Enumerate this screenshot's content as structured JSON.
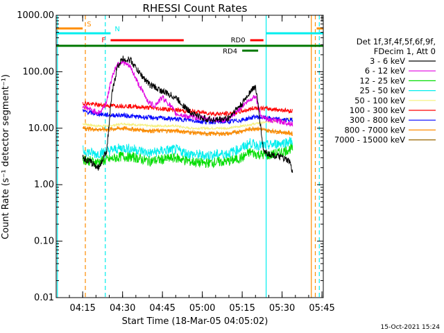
{
  "chart_data": {
    "type": "line",
    "title": "RHESSI Count Rates",
    "xlabel": "Start Time (18-Mar-05 04:05:02)",
    "ylabel": "Count Rate (s⁻¹ detector segment⁻¹)",
    "y_scale": "log",
    "ylim": [
      0.01,
      1000
    ],
    "xlim": [
      "04:05:02",
      "05:45:30"
    ],
    "x_ticks": [
      "04:15",
      "04:30",
      "04:45",
      "05:00",
      "05:15",
      "05:30",
      "05:45"
    ],
    "y_ticks": [
      "0.01",
      "0.10",
      "1.00",
      "10.00",
      "100.00",
      "1000.00"
    ],
    "timestamp": "15-Oct-2021 15:24",
    "legend": {
      "header": [
        "Det 1f,3f,4f,5f,6f,9f,",
        "FDecim 1, Att 0"
      ],
      "placement": "right"
    },
    "series": [
      {
        "name": "3 - 6 keV",
        "color": "#000000",
        "x": [
          "04:15",
          "04:18",
          "04:21",
          "04:22",
          "04:24",
          "04:26",
          "04:28",
          "04:30",
          "04:33",
          "04:36",
          "04:40",
          "04:45",
          "04:50",
          "04:55",
          "05:00",
          "05:05",
          "05:10",
          "05:12",
          "05:15",
          "05:18",
          "05:20",
          "05:21",
          "05:23",
          "05:25",
          "05:30",
          "05:33",
          "05:34"
        ],
        "values": [
          3,
          2.5,
          2,
          2.5,
          4,
          40,
          120,
          170,
          160,
          100,
          60,
          45,
          35,
          20,
          15,
          14,
          15,
          20,
          27,
          45,
          55,
          25,
          4,
          3.5,
          3,
          2.5,
          1.5
        ]
      },
      {
        "name": "6 - 12 keV",
        "color": "#e000e0",
        "x": [
          "04:15",
          "04:18",
          "04:21",
          "04:22",
          "04:24",
          "04:26",
          "04:28",
          "04:30",
          "04:33",
          "04:36",
          "04:40",
          "04:42",
          "04:45",
          "04:48",
          "04:50",
          "04:55",
          "05:00",
          "05:05",
          "05:10",
          "05:15",
          "05:18",
          "05:20",
          "05:22",
          "05:25",
          "05:30",
          "05:34"
        ],
        "values": [
          25,
          21,
          19,
          20,
          30,
          80,
          140,
          150,
          120,
          60,
          28,
          25,
          35,
          25,
          18,
          16,
          15,
          14,
          14,
          25,
          32,
          38,
          17,
          14,
          13,
          12
        ]
      },
      {
        "name": "12 - 25 keV",
        "color": "#00dd00",
        "x": [
          "04:15",
          "04:20",
          "04:25",
          "04:30",
          "04:35",
          "04:40",
          "04:45",
          "04:50",
          "04:55",
          "05:00",
          "05:05",
          "05:10",
          "05:15",
          "05:18",
          "05:20",
          "05:25",
          "05:30",
          "05:34"
        ],
        "values": [
          2.8,
          2.5,
          2.8,
          3.2,
          3.0,
          2.6,
          2.8,
          3.0,
          2.6,
          2.4,
          2.5,
          2.6,
          3.0,
          3.8,
          3.5,
          3.3,
          3.8,
          4.5
        ]
      },
      {
        "name": "25 - 50 keV",
        "color": "#00eeee",
        "x": [
          "04:15",
          "04:20",
          "04:25",
          "04:30",
          "04:35",
          "04:40",
          "04:45",
          "04:50",
          "04:55",
          "05:00",
          "05:05",
          "05:10",
          "05:15",
          "05:18",
          "05:20",
          "05:25",
          "05:30",
          "05:34"
        ],
        "values": [
          4,
          3.5,
          4,
          4.5,
          4.2,
          3.6,
          4,
          4.2,
          3.5,
          3.3,
          3.4,
          3.6,
          4.5,
          5.5,
          5,
          5,
          5.5,
          6
        ]
      },
      {
        "name": "50 - 100 keV",
        "color": "#f5f07a",
        "x": [
          "04:15",
          "04:20",
          "04:25",
          "04:30",
          "04:35",
          "04:40",
          "04:45",
          "04:50",
          "04:55",
          "05:00",
          "05:05",
          "05:10",
          "05:15",
          "05:20",
          "05:25",
          "05:30",
          "05:34"
        ],
        "values": [
          12,
          11,
          11,
          12,
          11.5,
          11,
          11,
          11,
          10,
          10,
          10,
          10,
          11,
          12,
          13,
          14,
          15
        ]
      },
      {
        "name": "100 - 300 keV",
        "color": "#ff0000",
        "x": [
          "04:15",
          "04:20",
          "04:25",
          "04:30",
          "04:35",
          "04:40",
          "04:45",
          "04:50",
          "04:55",
          "05:00",
          "05:05",
          "05:10",
          "05:15",
          "05:20",
          "05:25",
          "05:30",
          "05:34"
        ],
        "values": [
          28,
          26,
          25,
          25,
          24,
          23,
          22,
          21,
          20,
          19,
          18,
          18,
          20,
          23,
          22,
          21,
          20
        ]
      },
      {
        "name": "300 - 800 keV",
        "color": "#0000ff",
        "x": [
          "04:15",
          "04:20",
          "04:25",
          "04:30",
          "04:35",
          "04:40",
          "04:45",
          "04:50",
          "04:55",
          "05:00",
          "05:05",
          "05:10",
          "05:15",
          "05:20",
          "05:25",
          "05:30",
          "05:34"
        ],
        "values": [
          20,
          18,
          17,
          17,
          16,
          15.5,
          15,
          14.5,
          14,
          13,
          13,
          13,
          14,
          16,
          15,
          14,
          14
        ]
      },
      {
        "name": "800 - 7000 keV",
        "color": "#ff8c00",
        "x": [
          "04:15",
          "04:20",
          "04:25",
          "04:30",
          "04:35",
          "04:40",
          "04:45",
          "04:50",
          "04:55",
          "05:00",
          "05:05",
          "05:10",
          "05:15",
          "05:20",
          "05:25",
          "05:30",
          "05:34"
        ],
        "values": [
          10,
          9.5,
          9.5,
          10,
          9.5,
          9,
          9,
          9,
          8.5,
          8,
          8,
          8,
          9,
          10,
          9,
          8.5,
          8
        ]
      },
      {
        "name": "7000 - 15000 keV",
        "color": "#996600",
        "x": [
          "04:15",
          "04:20",
          "04:25",
          "04:30",
          "04:35",
          "04:40",
          "04:45",
          "04:50",
          "04:55",
          "05:00",
          "05:05",
          "05:10",
          "05:15",
          "05:20",
          "05:25",
          "05:30",
          "05:34"
        ],
        "values": [
          10,
          9.5,
          9.6,
          10,
          9.5,
          9.1,
          9.1,
          9.0,
          8.6,
          8.1,
          8.1,
          8.1,
          9.0,
          10,
          9.1,
          8.6,
          8.1
        ]
      }
    ],
    "state_bars": [
      {
        "label": "S",
        "color": "#ff8c00",
        "segments": [
          [
            "04:05:02",
            "04:15"
          ],
          [
            "05:43",
            "05:45:30"
          ]
        ]
      },
      {
        "label": "N",
        "color": "#00eeee",
        "segments": [
          [
            "04:05:02",
            "04:25:30"
          ],
          [
            "05:24",
            "05:45:30"
          ]
        ]
      },
      {
        "label": "F",
        "color": "#ff0000",
        "segments": [
          [
            "04:25:30",
            "04:53"
          ]
        ]
      },
      {
        "label": "RD0",
        "color": "#ff0000",
        "segments": [
          [
            "05:18",
            "05:23"
          ]
        ]
      },
      {
        "label": "RD4",
        "color": "#007700",
        "segments": [
          [
            "05:15",
            "05:21"
          ]
        ]
      },
      {
        "label": "",
        "color": "#007700",
        "segments": [
          [
            "04:05:02",
            "05:45:30"
          ]
        ]
      }
    ],
    "vertical_lines": [
      {
        "x": "04:05:30",
        "color": "#00eeee",
        "style": "solid"
      },
      {
        "x": "04:16",
        "color": "#ff8c00",
        "style": "dashed"
      },
      {
        "x": "04:23:30",
        "color": "#00eeee",
        "style": "dashed"
      },
      {
        "x": "05:24",
        "color": "#00eeee",
        "style": "solid"
      },
      {
        "x": "05:41",
        "color": "#ff8c00",
        "style": "solid"
      },
      {
        "x": "05:42:30",
        "color": "#ff8c00",
        "style": "dashed"
      },
      {
        "x": "05:44",
        "color": "#00eeee",
        "style": "dashed"
      }
    ]
  }
}
